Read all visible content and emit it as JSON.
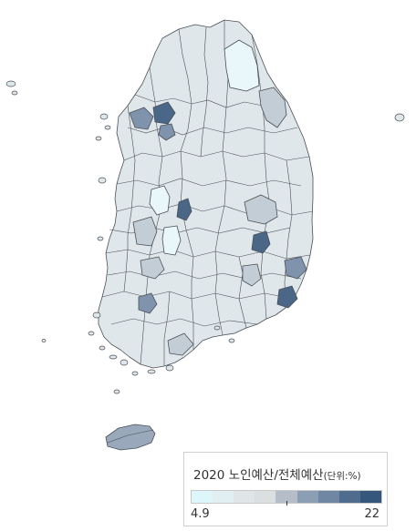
{
  "legend": {
    "title_main": "2020 노인예산/전체예산",
    "title_unit": "(단위:%)",
    "min_label": "4.9",
    "max_label": "22",
    "scale_colors": [
      "#ddf6fb",
      "#e1eff2",
      "#e0e6e8",
      "#dcdfe0",
      "#b4bdc8",
      "#8c9eb3",
      "#6f87a3",
      "#4f6c8e",
      "#36577c"
    ]
  },
  "colors": {
    "base_fill": "#dfe7ea",
    "light_fill": "#e9f7fa",
    "mid_fill": "#c3cdd6",
    "dark_fill": "#7f93ad",
    "darkest_fill": "#4a6788",
    "jeju_fill": "#99a8bb",
    "outline": "#4a4f57"
  },
  "map_regions": [
    {
      "name": "gangwon-north",
      "value_level": 1
    },
    {
      "name": "seoul-metro",
      "value_level": 8
    },
    {
      "name": "daegu",
      "value_level": 7
    },
    {
      "name": "busan",
      "value_level": 7
    },
    {
      "name": "gwangju",
      "value_level": 6
    },
    {
      "name": "daejeon",
      "value_level": 7
    },
    {
      "name": "jeju",
      "value_level": 5
    }
  ]
}
